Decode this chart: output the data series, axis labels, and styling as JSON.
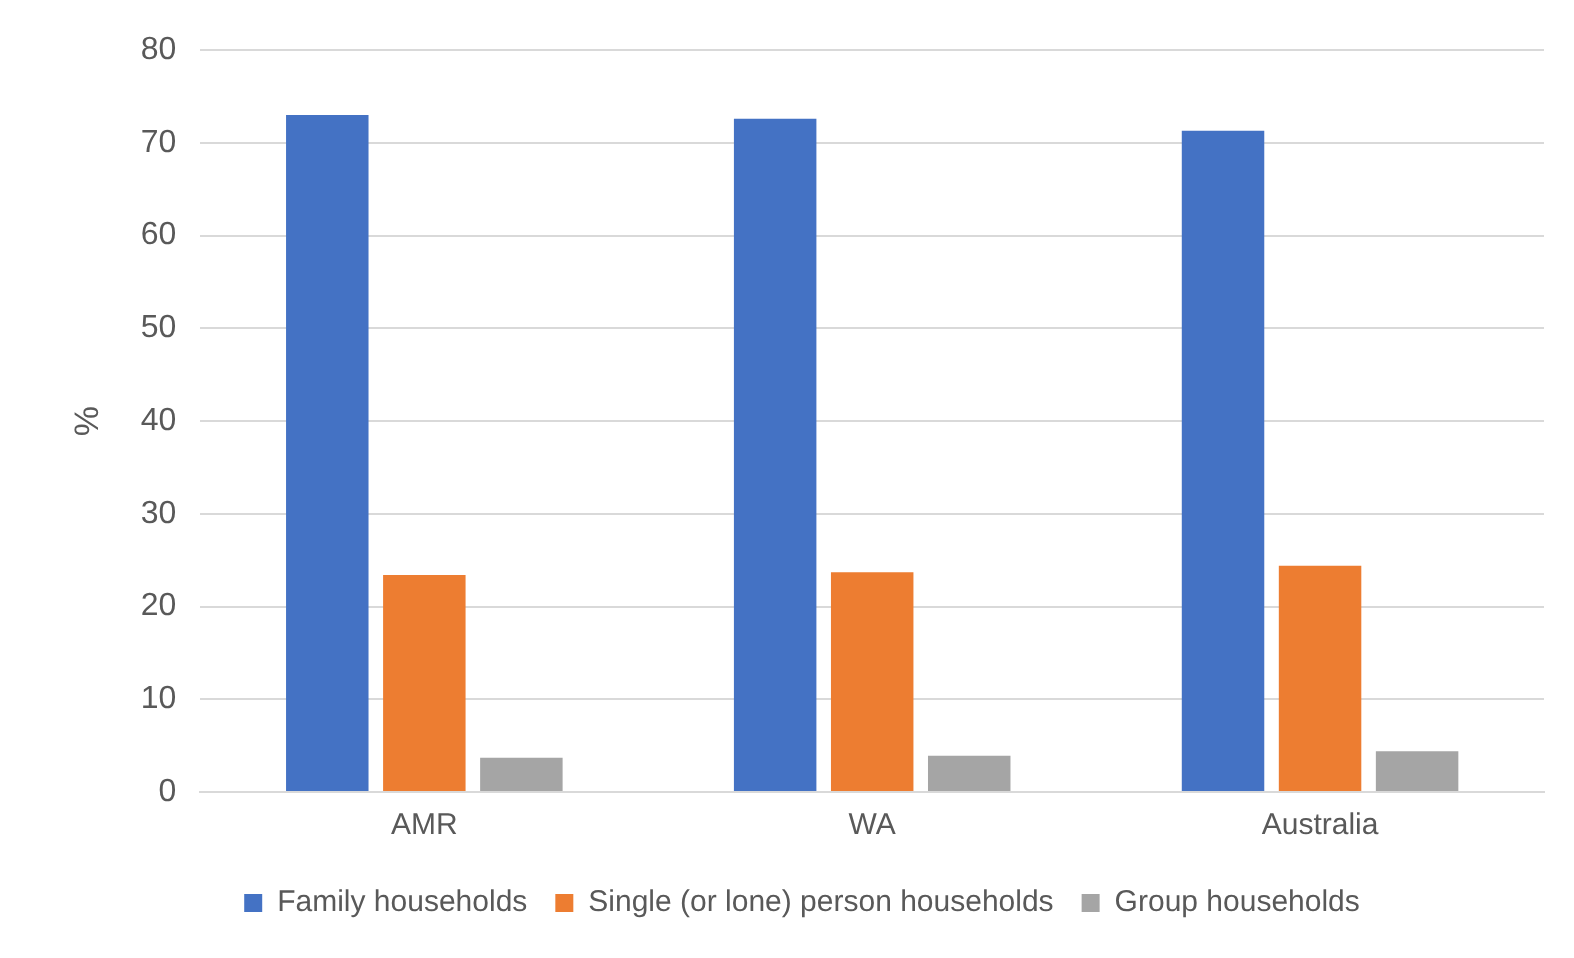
{
  "chart_data": {
    "type": "bar",
    "ylabel": "%",
    "categories": [
      "AMR",
      "WA",
      "Australia"
    ],
    "series": [
      {
        "name": "Family households",
        "color": "#4472c4",
        "values": [
          73.0,
          72.6,
          71.3
        ]
      },
      {
        "name": "Single (or lone) person households",
        "color": "#ed7d31",
        "values": [
          23.4,
          23.7,
          24.4
        ]
      },
      {
        "name": "Group households",
        "color": "#a5a5a5",
        "values": [
          3.7,
          3.9,
          4.4
        ]
      }
    ],
    "ylim": [
      0,
      80
    ],
    "yticks": [
      0,
      10,
      20,
      30,
      40,
      50,
      60,
      70,
      80
    ],
    "grid": "y",
    "legend": "bottom"
  }
}
